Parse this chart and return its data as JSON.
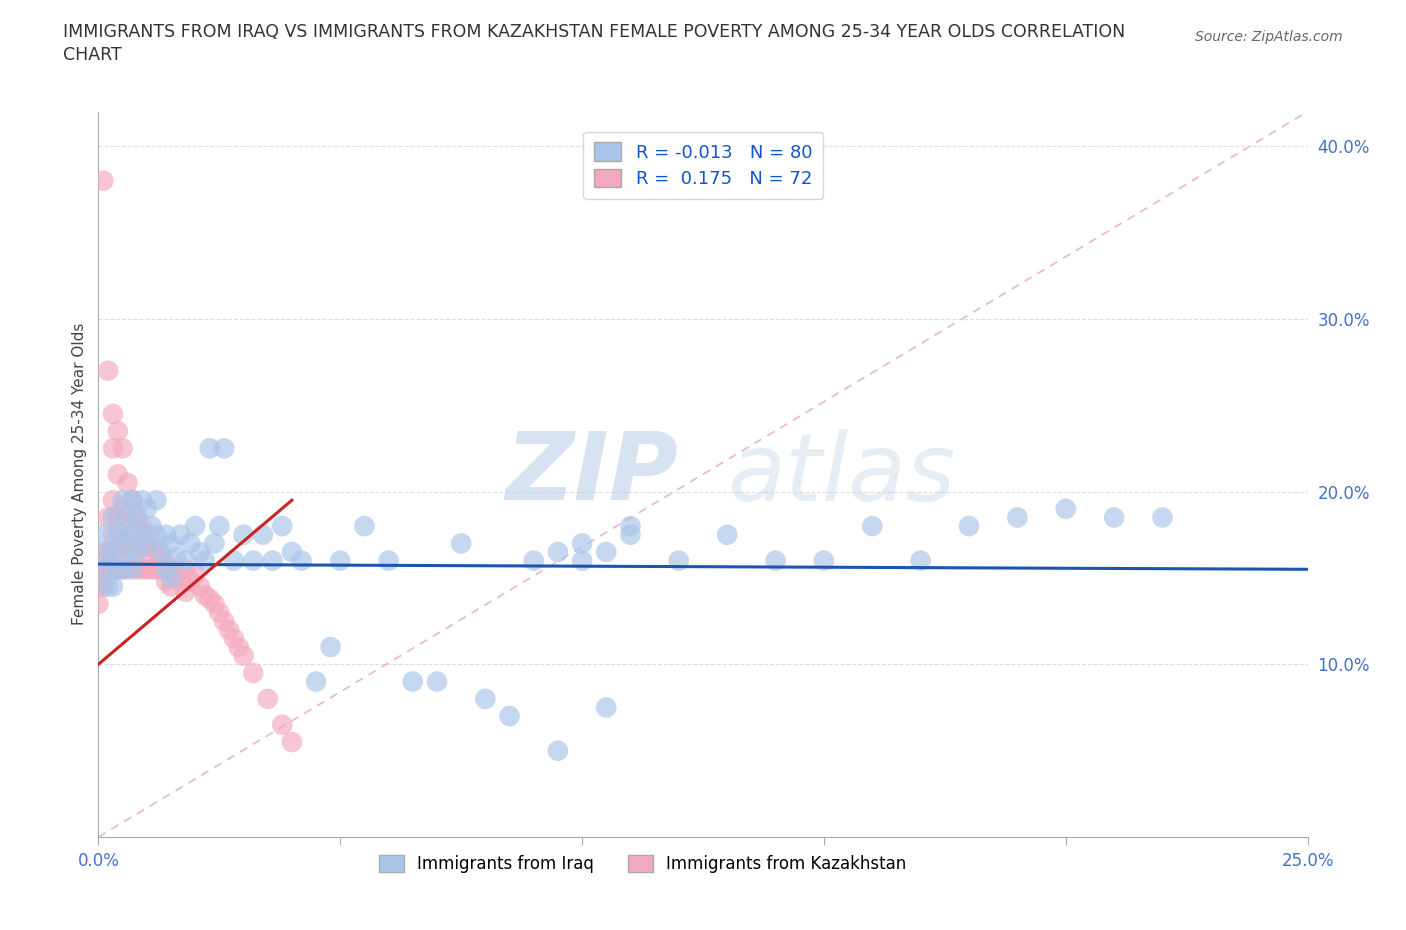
{
  "title_line1": "IMMIGRANTS FROM IRAQ VS IMMIGRANTS FROM KAZAKHSTAN FEMALE POVERTY AMONG 25-34 YEAR OLDS CORRELATION",
  "title_line2": "CHART",
  "source": "Source: ZipAtlas.com",
  "ylabel": "Female Poverty Among 25-34 Year Olds",
  "xlim": [
    0.0,
    0.25
  ],
  "ylim": [
    0.0,
    0.42
  ],
  "xticks": [
    0.0,
    0.05,
    0.1,
    0.15,
    0.2,
    0.25
  ],
  "xticklabels": [
    "0.0%",
    "",
    "",
    "",
    "",
    "25.0%"
  ],
  "yticks_right": [
    0.1,
    0.2,
    0.3,
    0.4
  ],
  "ytick_right_labels": [
    "10.0%",
    "20.0%",
    "30.0%",
    "40.0%"
  ],
  "iraq_color": "#a8c4e8",
  "kazakhstan_color": "#f4a8be",
  "iraq_R": -0.013,
  "iraq_N": 80,
  "kazakhstan_R": 0.175,
  "kazakhstan_N": 72,
  "iraq_trend_color": "#1a56b0",
  "kazakhstan_trend_color": "#cc2222",
  "watermark_zip": "ZIP",
  "watermark_atlas": "atlas",
  "watermark_color": "#c5d8f0",
  "background_color": "#ffffff",
  "grid_color": "#dddddd",
  "diag_color": "#e8b8c8",
  "iraq_scatter_x": [
    0.001,
    0.001,
    0.002,
    0.002,
    0.003,
    0.003,
    0.003,
    0.004,
    0.004,
    0.005,
    0.005,
    0.005,
    0.006,
    0.006,
    0.007,
    0.007,
    0.007,
    0.008,
    0.008,
    0.009,
    0.009,
    0.01,
    0.01,
    0.011,
    0.012,
    0.012,
    0.013,
    0.014,
    0.014,
    0.015,
    0.015,
    0.016,
    0.017,
    0.018,
    0.019,
    0.02,
    0.021,
    0.022,
    0.023,
    0.024,
    0.025,
    0.026,
    0.028,
    0.03,
    0.032,
    0.034,
    0.036,
    0.038,
    0.04,
    0.042,
    0.045,
    0.048,
    0.05,
    0.055,
    0.06,
    0.065,
    0.07,
    0.075,
    0.08,
    0.085,
    0.09,
    0.095,
    0.1,
    0.105,
    0.11,
    0.12,
    0.13,
    0.14,
    0.15,
    0.16,
    0.17,
    0.18,
    0.19,
    0.2,
    0.21,
    0.22,
    0.095,
    0.1,
    0.105,
    0.11
  ],
  "iraq_scatter_y": [
    0.175,
    0.155,
    0.165,
    0.145,
    0.185,
    0.165,
    0.145,
    0.175,
    0.155,
    0.195,
    0.175,
    0.155,
    0.185,
    0.165,
    0.195,
    0.175,
    0.155,
    0.185,
    0.165,
    0.195,
    0.175,
    0.19,
    0.17,
    0.18,
    0.195,
    0.175,
    0.165,
    0.175,
    0.155,
    0.17,
    0.15,
    0.162,
    0.175,
    0.16,
    0.17,
    0.18,
    0.165,
    0.16,
    0.225,
    0.17,
    0.18,
    0.225,
    0.16,
    0.175,
    0.16,
    0.175,
    0.16,
    0.18,
    0.165,
    0.16,
    0.09,
    0.11,
    0.16,
    0.18,
    0.16,
    0.09,
    0.09,
    0.17,
    0.08,
    0.07,
    0.16,
    0.05,
    0.16,
    0.075,
    0.18,
    0.16,
    0.175,
    0.16,
    0.16,
    0.18,
    0.16,
    0.18,
    0.185,
    0.19,
    0.185,
    0.185,
    0.165,
    0.17,
    0.165,
    0.175
  ],
  "kaz_scatter_x": [
    0.0,
    0.0,
    0.0,
    0.001,
    0.001,
    0.001,
    0.001,
    0.002,
    0.002,
    0.002,
    0.002,
    0.003,
    0.003,
    0.003,
    0.003,
    0.003,
    0.003,
    0.004,
    0.004,
    0.004,
    0.004,
    0.004,
    0.005,
    0.005,
    0.005,
    0.005,
    0.006,
    0.006,
    0.006,
    0.006,
    0.007,
    0.007,
    0.007,
    0.008,
    0.008,
    0.008,
    0.009,
    0.009,
    0.009,
    0.01,
    0.01,
    0.01,
    0.011,
    0.011,
    0.012,
    0.012,
    0.013,
    0.013,
    0.014,
    0.014,
    0.015,
    0.015,
    0.016,
    0.017,
    0.018,
    0.018,
    0.019,
    0.02,
    0.021,
    0.022,
    0.023,
    0.024,
    0.025,
    0.026,
    0.027,
    0.028,
    0.029,
    0.03,
    0.032,
    0.035,
    0.038,
    0.04
  ],
  "kaz_scatter_y": [
    0.155,
    0.145,
    0.135,
    0.38,
    0.165,
    0.155,
    0.145,
    0.27,
    0.185,
    0.165,
    0.155,
    0.245,
    0.225,
    0.195,
    0.175,
    0.165,
    0.155,
    0.235,
    0.21,
    0.185,
    0.165,
    0.155,
    0.225,
    0.19,
    0.17,
    0.155,
    0.205,
    0.185,
    0.168,
    0.155,
    0.195,
    0.175,
    0.158,
    0.185,
    0.17,
    0.155,
    0.18,
    0.168,
    0.155,
    0.175,
    0.165,
    0.155,
    0.168,
    0.155,
    0.165,
    0.155,
    0.162,
    0.155,
    0.158,
    0.148,
    0.155,
    0.145,
    0.152,
    0.148,
    0.155,
    0.142,
    0.148,
    0.152,
    0.145,
    0.14,
    0.138,
    0.135,
    0.13,
    0.125,
    0.12,
    0.115,
    0.11,
    0.105,
    0.095,
    0.08,
    0.065,
    0.055
  ]
}
